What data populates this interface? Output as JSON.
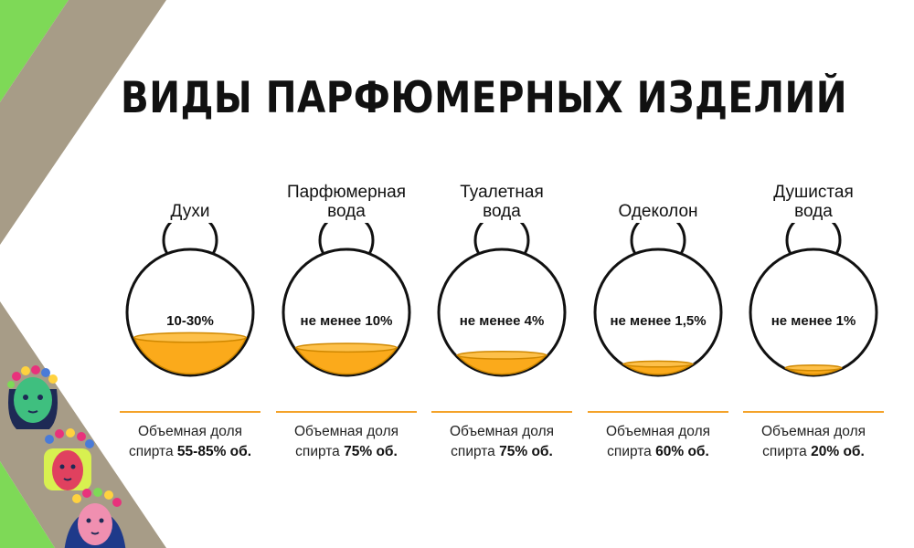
{
  "title": "ВИДЫ ПАРФЮМЕРНЫХ ИЗДЕЛИЙ",
  "colors": {
    "liquid": "#fbaa1b",
    "liquid_edge": "#d08800",
    "outline": "#111111",
    "divider": "#f4a32a",
    "decor_green": "#7ed957",
    "decor_taupe": "#a79c87"
  },
  "items": [
    {
      "name_lines": [
        "Духи"
      ],
      "concentration": "10-30%",
      "desc_line1": "Объемная доля",
      "desc_prefix": "спирта",
      "desc_value": "55-85% об.",
      "fill_level": 0.3
    },
    {
      "name_lines": [
        "Парфюмерная",
        "вода"
      ],
      "concentration": "не менее 10%",
      "desc_line1": "Объемная доля",
      "desc_prefix": "спирта",
      "desc_value": "75% об.",
      "fill_level": 0.22
    },
    {
      "name_lines": [
        "Туалетная",
        "вода"
      ],
      "concentration": "не менее 4%",
      "desc_line1": "Объемная доля",
      "desc_prefix": "спирта",
      "desc_value": "75% об.",
      "fill_level": 0.16
    },
    {
      "name_lines": [
        "Одеколон"
      ],
      "concentration": "не менее 1,5%",
      "desc_line1": "Объемная доля",
      "desc_prefix": "спирта",
      "desc_value": "60% об.",
      "fill_level": 0.09
    },
    {
      "name_lines": [
        "Душистая",
        "вода"
      ],
      "concentration": "не менее 1%",
      "desc_line1": "Объемная доля",
      "desc_prefix": "спирта",
      "desc_value": "20% об.",
      "fill_level": 0.06
    }
  ],
  "decor": {
    "icons": [
      "flower-crown-green-face-icon",
      "flower-crown-pink-face-icon",
      "flower-crown-blue-face-icon"
    ]
  }
}
